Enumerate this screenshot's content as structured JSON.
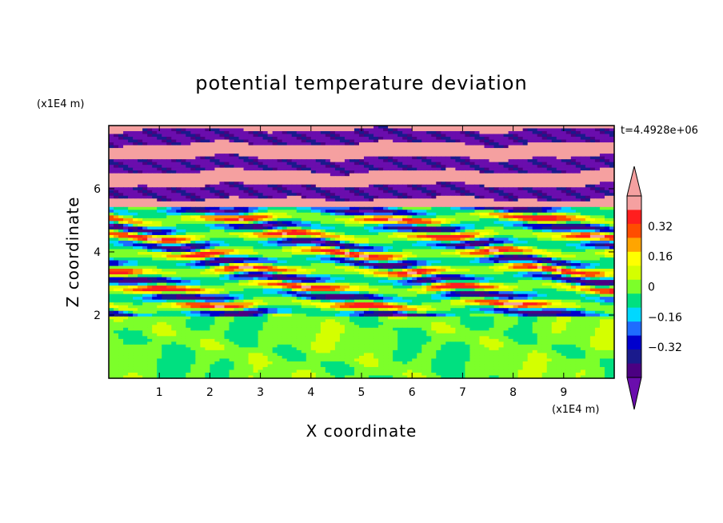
{
  "chart_data": {
    "type": "heatmap",
    "title": "potential temperature deviation",
    "xlabel": "X coordinate",
    "ylabel": "Z coordinate",
    "x_unit": "(x1E4 m)",
    "y_unit": "(x1E4 m)",
    "time_stamp": "t=4.4928e+06",
    "xlim": [
      0,
      10
    ],
    "ylim": [
      0,
      8
    ],
    "x_ticks": [
      "1",
      "2",
      "3",
      "4",
      "5",
      "6",
      "7",
      "8",
      "9"
    ],
    "y_ticks": [
      "2",
      "4",
      "6"
    ],
    "colorbar": {
      "levels": [
        -0.48,
        -0.4,
        -0.32,
        -0.24,
        -0.16,
        -0.08,
        0,
        0.08,
        0.16,
        0.24,
        0.32,
        0.4,
        0.48
      ],
      "tick_labels": [
        "0.32",
        "0.16",
        "0",
        "-0.16",
        "-0.32"
      ],
      "colors_low_to_high": [
        "#4b0082",
        "#1a1a8c",
        "#0000cd",
        "#1e6cff",
        "#00d8ff",
        "#00e080",
        "#7cff2a",
        "#d4ff00",
        "#ffff00",
        "#ffa500",
        "#ff4d00",
        "#ff1e1e",
        "#f5a0a0"
      ],
      "under_color": "#6a0dad",
      "over_color": "#f5a0a0"
    },
    "layers": [
      {
        "z_range": [
          0,
          2
        ],
        "description": "near-zero band",
        "dominant_value": 0.04
      },
      {
        "z_range": [
          2,
          5.5
        ],
        "description": "mixed variable band",
        "dominant_value": 0.0
      },
      {
        "z_range": [
          5.5,
          8
        ],
        "description": "alternating extreme bands",
        "dominant_value": 0.48
      }
    ]
  }
}
